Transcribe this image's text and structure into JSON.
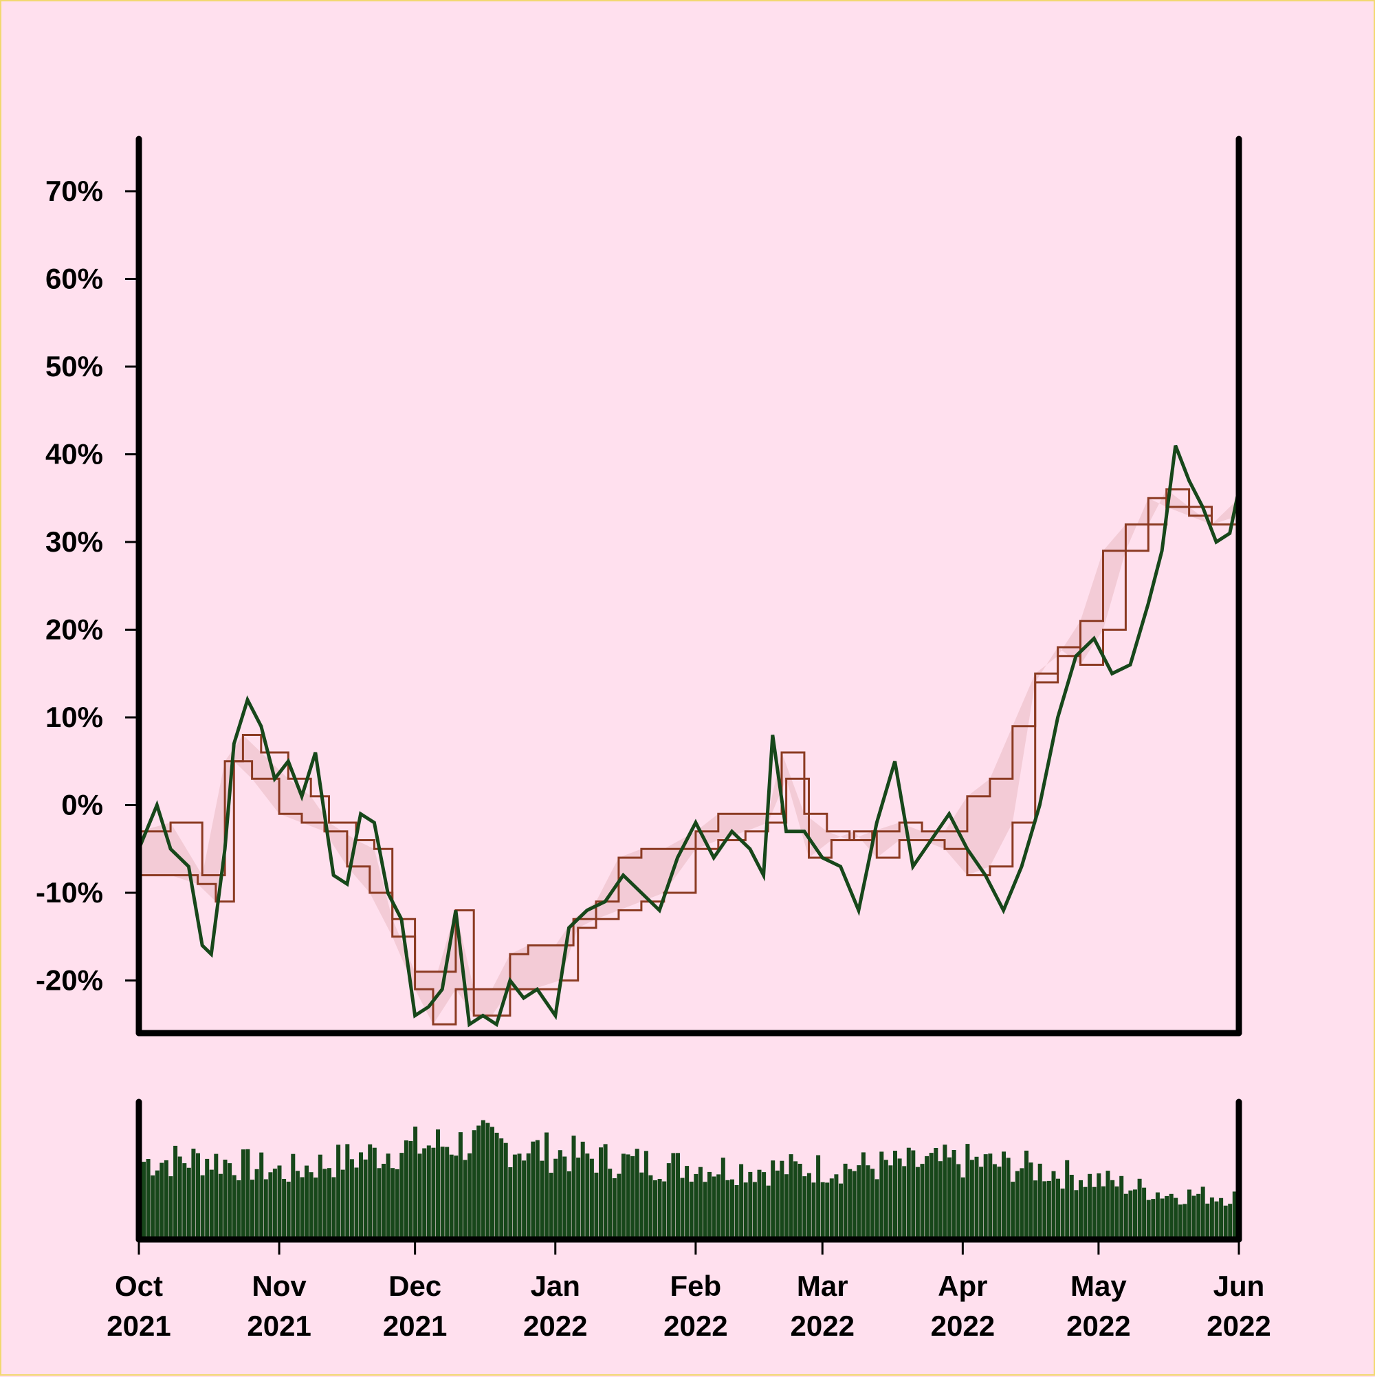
{
  "colors": {
    "background": "#ffe0ee",
    "price_line": "#17471a",
    "channel_line": "#8b3a22",
    "channel_fill": "#f2c9d3",
    "volume": "#17471a",
    "axis": "#000000"
  },
  "chart_data": [
    {
      "type": "line",
      "title": "",
      "xlabel": "",
      "ylabel": "",
      "ylim": [
        -26,
        74
      ],
      "xlim": [
        "2021-10-01",
        "2022-06-01"
      ],
      "grid": false,
      "y_ticks": [
        {
          "value": -20,
          "label": "-20%"
        },
        {
          "value": -10,
          "label": "-10%"
        },
        {
          "value": 0,
          "label": "0%"
        },
        {
          "value": 10,
          "label": "10%"
        },
        {
          "value": 20,
          "label": "20%"
        },
        {
          "value": 30,
          "label": "30%"
        },
        {
          "value": 40,
          "label": "40%"
        },
        {
          "value": 50,
          "label": "50%"
        },
        {
          "value": 60,
          "label": "60%"
        },
        {
          "value": 70,
          "label": "70%"
        }
      ],
      "price": {
        "dates": [
          "2021-10-01",
          "2021-10-05",
          "2021-10-08",
          "2021-10-12",
          "2021-10-15",
          "2021-10-17",
          "2021-10-20",
          "2021-10-22",
          "2021-10-25",
          "2021-10-28",
          "2021-10-31",
          "2021-11-03",
          "2021-11-06",
          "2021-11-09",
          "2021-11-13",
          "2021-11-16",
          "2021-11-19",
          "2021-11-22",
          "2021-11-25",
          "2021-11-28",
          "2021-12-01",
          "2021-12-04",
          "2021-12-07",
          "2021-12-10",
          "2021-12-13",
          "2021-12-16",
          "2021-12-19",
          "2021-12-22",
          "2021-12-25",
          "2021-12-28",
          "2022-01-01",
          "2022-01-04",
          "2022-01-08",
          "2022-01-12",
          "2022-01-16",
          "2022-01-20",
          "2022-01-24",
          "2022-01-28",
          "2022-02-01",
          "2022-02-05",
          "2022-02-09",
          "2022-02-13",
          "2022-02-16",
          "2022-02-18",
          "2022-02-21",
          "2022-02-25",
          "2022-03-01",
          "2022-03-05",
          "2022-03-09",
          "2022-03-13",
          "2022-03-17",
          "2022-03-21",
          "2022-03-25",
          "2022-03-29",
          "2022-04-02",
          "2022-04-06",
          "2022-04-10",
          "2022-04-14",
          "2022-04-18",
          "2022-04-22",
          "2022-04-26",
          "2022-04-30",
          "2022-05-04",
          "2022-05-08",
          "2022-05-12",
          "2022-05-15",
          "2022-05-18",
          "2022-05-21",
          "2022-05-24",
          "2022-05-27",
          "2022-05-30",
          "2022-06-01"
        ],
        "values": [
          -5,
          0,
          -5,
          -7,
          -16,
          -17,
          -5,
          7,
          12,
          9,
          3,
          5,
          1,
          6,
          -8,
          -9,
          -1,
          -2,
          -10,
          -13,
          -24,
          -23,
          -21,
          -12,
          -25,
          -24,
          -25,
          -20,
          -22,
          -21,
          -24,
          -14,
          -12,
          -11,
          -8,
          -10,
          -12,
          -6,
          -2,
          -6,
          -3,
          -5,
          -8,
          8,
          -3,
          -3,
          -6,
          -7,
          -12,
          -2,
          5,
          -7,
          -4,
          -1,
          -5,
          -8,
          -12,
          -7,
          0,
          10,
          17,
          19,
          15,
          16,
          23,
          29,
          41,
          37,
          34,
          30,
          31,
          36
        ]
      },
      "channel_upper": {
        "dates": [
          "2021-10-01",
          "2021-10-08",
          "2021-10-15",
          "2021-10-20",
          "2021-10-24",
          "2021-10-28",
          "2021-11-03",
          "2021-11-08",
          "2021-11-12",
          "2021-11-18",
          "2021-11-22",
          "2021-11-26",
          "2021-12-01",
          "2021-12-06",
          "2021-12-10",
          "2021-12-14",
          "2021-12-18",
          "2021-12-22",
          "2021-12-26",
          "2022-01-01",
          "2022-01-05",
          "2022-01-10",
          "2022-01-15",
          "2022-01-20",
          "2022-01-25",
          "2022-02-01",
          "2022-02-06",
          "2022-02-12",
          "2022-02-17",
          "2022-02-20",
          "2022-02-25",
          "2022-03-02",
          "2022-03-07",
          "2022-03-12",
          "2022-03-18",
          "2022-03-23",
          "2022-03-28",
          "2022-04-02",
          "2022-04-07",
          "2022-04-12",
          "2022-04-17",
          "2022-04-22",
          "2022-04-27",
          "2022-05-02",
          "2022-05-07",
          "2022-05-12",
          "2022-05-16",
          "2022-05-21",
          "2022-05-26",
          "2022-06-01"
        ],
        "values": [
          -3,
          -2,
          -8,
          5,
          8,
          6,
          3,
          1,
          -2,
          -4,
          -5,
          -13,
          -19,
          -19,
          -12,
          -21,
          -21,
          -17,
          -16,
          -16,
          -13,
          -11,
          -6,
          -5,
          -5,
          -3,
          -1,
          -1,
          -1,
          6,
          -1,
          -3,
          -4,
          -3,
          -2,
          -3,
          -3,
          1,
          3,
          9,
          15,
          17,
          21,
          29,
          32,
          32,
          36,
          34,
          32,
          33
        ]
      },
      "channel_lower": {
        "dates": [
          "2021-10-01",
          "2021-10-08",
          "2021-10-14",
          "2021-10-18",
          "2021-10-22",
          "2021-10-26",
          "2021-11-01",
          "2021-11-06",
          "2021-11-11",
          "2021-11-16",
          "2021-11-21",
          "2021-11-26",
          "2021-12-01",
          "2021-12-05",
          "2021-12-10",
          "2021-12-14",
          "2021-12-18",
          "2021-12-22",
          "2021-12-27",
          "2022-01-02",
          "2022-01-06",
          "2022-01-10",
          "2022-01-15",
          "2022-01-20",
          "2022-01-25",
          "2022-02-01",
          "2022-02-06",
          "2022-02-12",
          "2022-02-17",
          "2022-02-21",
          "2022-02-26",
          "2022-03-03",
          "2022-03-08",
          "2022-03-13",
          "2022-03-18",
          "2022-03-23",
          "2022-03-28",
          "2022-04-02",
          "2022-04-07",
          "2022-04-12",
          "2022-04-17",
          "2022-04-22",
          "2022-04-27",
          "2022-05-02",
          "2022-05-07",
          "2022-05-12",
          "2022-05-16",
          "2022-05-21",
          "2022-05-26",
          "2022-06-01"
        ],
        "values": [
          -8,
          -8,
          -9,
          -11,
          5,
          3,
          -1,
          -2,
          -3,
          -7,
          -10,
          -15,
          -21,
          -25,
          -21,
          -24,
          -24,
          -21,
          -21,
          -20,
          -14,
          -13,
          -12,
          -11,
          -10,
          -5,
          -4,
          -3,
          -2,
          3,
          -6,
          -4,
          -3,
          -6,
          -4,
          -4,
          -5,
          -8,
          -7,
          -2,
          14,
          18,
          16,
          20,
          29,
          35,
          34,
          33,
          32,
          35
        ]
      }
    },
    {
      "type": "bar",
      "title": "",
      "xlabel": "",
      "ylabel": "",
      "note_scale": "relative volume",
      "ylim": [
        0,
        100
      ],
      "volume_envelope": {
        "dates": [
          "2021-10-01",
          "2021-10-15",
          "2021-11-01",
          "2021-11-15",
          "2021-12-01",
          "2021-12-15",
          "2022-01-01",
          "2022-01-15",
          "2022-02-01",
          "2022-02-15",
          "2022-03-01",
          "2022-03-15",
          "2022-04-01",
          "2022-04-15",
          "2022-05-01",
          "2022-05-15",
          "2022-06-01"
        ],
        "values": [
          60,
          62,
          52,
          62,
          72,
          75,
          66,
          60,
          56,
          54,
          55,
          57,
          60,
          55,
          45,
          35,
          33
        ]
      },
      "x_ticks": [
        {
          "value": "2021-10-01",
          "month": "Oct",
          "year": "2021"
        },
        {
          "value": "2021-11-01",
          "month": "Nov",
          "year": "2021"
        },
        {
          "value": "2021-12-01",
          "month": "Dec",
          "year": "2021"
        },
        {
          "value": "2022-01-01",
          "month": "Jan",
          "year": "2022"
        },
        {
          "value": "2022-02-01",
          "month": "Feb",
          "year": "2022"
        },
        {
          "value": "2022-03-01",
          "month": "Mar",
          "year": "2022"
        },
        {
          "value": "2022-04-01",
          "month": "Apr",
          "year": "2022"
        },
        {
          "value": "2022-05-01",
          "month": "May",
          "year": "2022"
        },
        {
          "value": "2022-06-01",
          "month": "Jun",
          "year": "2022"
        }
      ]
    }
  ]
}
